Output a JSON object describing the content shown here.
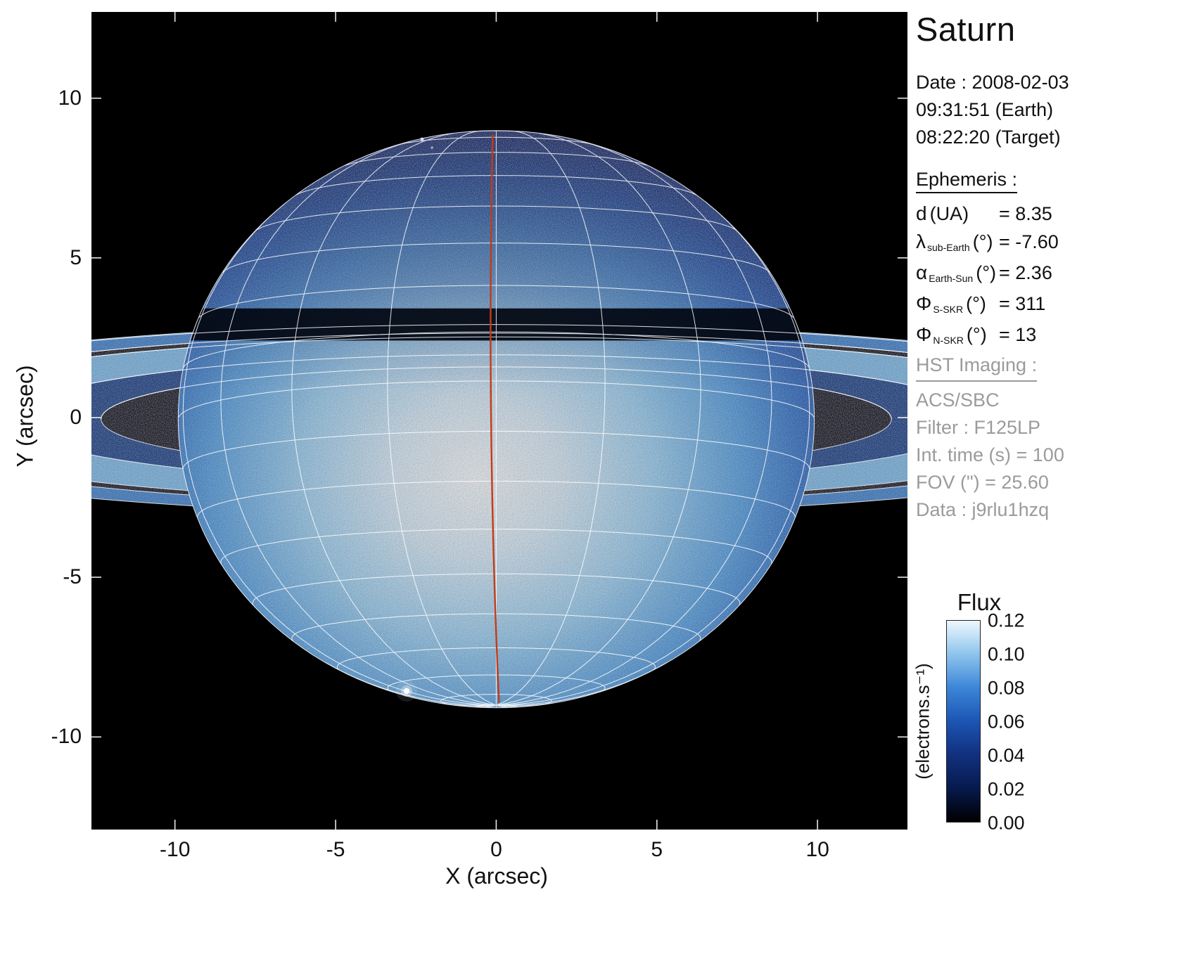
{
  "title": "Saturn",
  "info": {
    "date": "Date : 2008-02-03",
    "earth_time": "09:31:51 (Earth)",
    "target_time": "08:22:20 (Target)"
  },
  "ephemeris": {
    "heading": "Ephemeris :",
    "rows": [
      {
        "symbol": "d",
        "sub": "",
        "unit": "(UA)",
        "value": "= 8.35"
      },
      {
        "symbol": "λ",
        "sub": "sub-Earth",
        "unit": "(°)",
        "value": "= -7.60"
      },
      {
        "symbol": "α",
        "sub": "Earth-Sun",
        "unit": "(°)",
        "value": "= 2.36"
      },
      {
        "symbol": "Φ",
        "sub": "S-SKR",
        "unit": "(°)",
        "value": "= 311"
      },
      {
        "symbol": "Φ",
        "sub": "N-SKR",
        "unit": "(°)",
        "value": "= 13"
      }
    ]
  },
  "hst_imaging": {
    "heading": "HST Imaging :",
    "lines": [
      "ACS/SBC",
      "Filter : F125LP",
      "Int. time (s) = 100",
      "FOV (\") = 25.60",
      "Data : j9rlu1hzq"
    ]
  },
  "colorbar": {
    "title": "Flux",
    "unit": "(electrons.s⁻¹)",
    "tick_labels": [
      "0.12",
      "0.10",
      "0.08",
      "0.06",
      "0.04",
      "0.02",
      "0.00"
    ],
    "min": 0.0,
    "max": 0.12,
    "gradient_bottom_to_top": [
      "#000000",
      "#071a4e",
      "#11307e",
      "#1c55b4",
      "#3c86d8",
      "#8ec4ec",
      "#eef8ff"
    ]
  },
  "axes": {
    "xlabel": "X (arcsec)",
    "ylabel": "Y (arcsec)",
    "xticks": [
      -10,
      -5,
      0,
      5,
      10
    ],
    "yticks": [
      10,
      5,
      0,
      -5,
      -10
    ],
    "xlim": [
      -12.6,
      12.8
    ],
    "ylim": [
      -12.9,
      12.7
    ]
  },
  "chart_data": {
    "type": "heatmap",
    "title": "Saturn",
    "xlabel": "X (arcsec)",
    "ylabel": "Y (arcsec)",
    "xlim": [
      -12.6,
      12.8
    ],
    "ylim": [
      -12.9,
      12.7
    ],
    "colorbar_label": "Flux (electrons.s⁻¹)",
    "flux_range": [
      0.0,
      0.12
    ],
    "description": "HST ACS/SBC F125LP image of Saturn rendered as a blue intensity map: bright noisy disk, nearly edge-on rings extending to the plot edges, dark ring-plane band across the upper disk, overlaid white planetographic wireframe grid, white ring-edge ellipses, red central meridian, bright point source near the lower-left limb.",
    "overlay": {
      "sub_earth_latitude_deg": -7.6,
      "equatorial_radius_arcsec": 9.9,
      "polar_to_equatorial_ratio": 0.908,
      "lat_grid_step_deg": 10,
      "lon_grid_step_deg": 20,
      "ring_edge_radii_arcsec": [
        12.3,
        15.15,
        19.35,
        20.25,
        22.5
      ],
      "central_meridian_color": "#c43b17",
      "grid_color": "#ffffff"
    }
  }
}
